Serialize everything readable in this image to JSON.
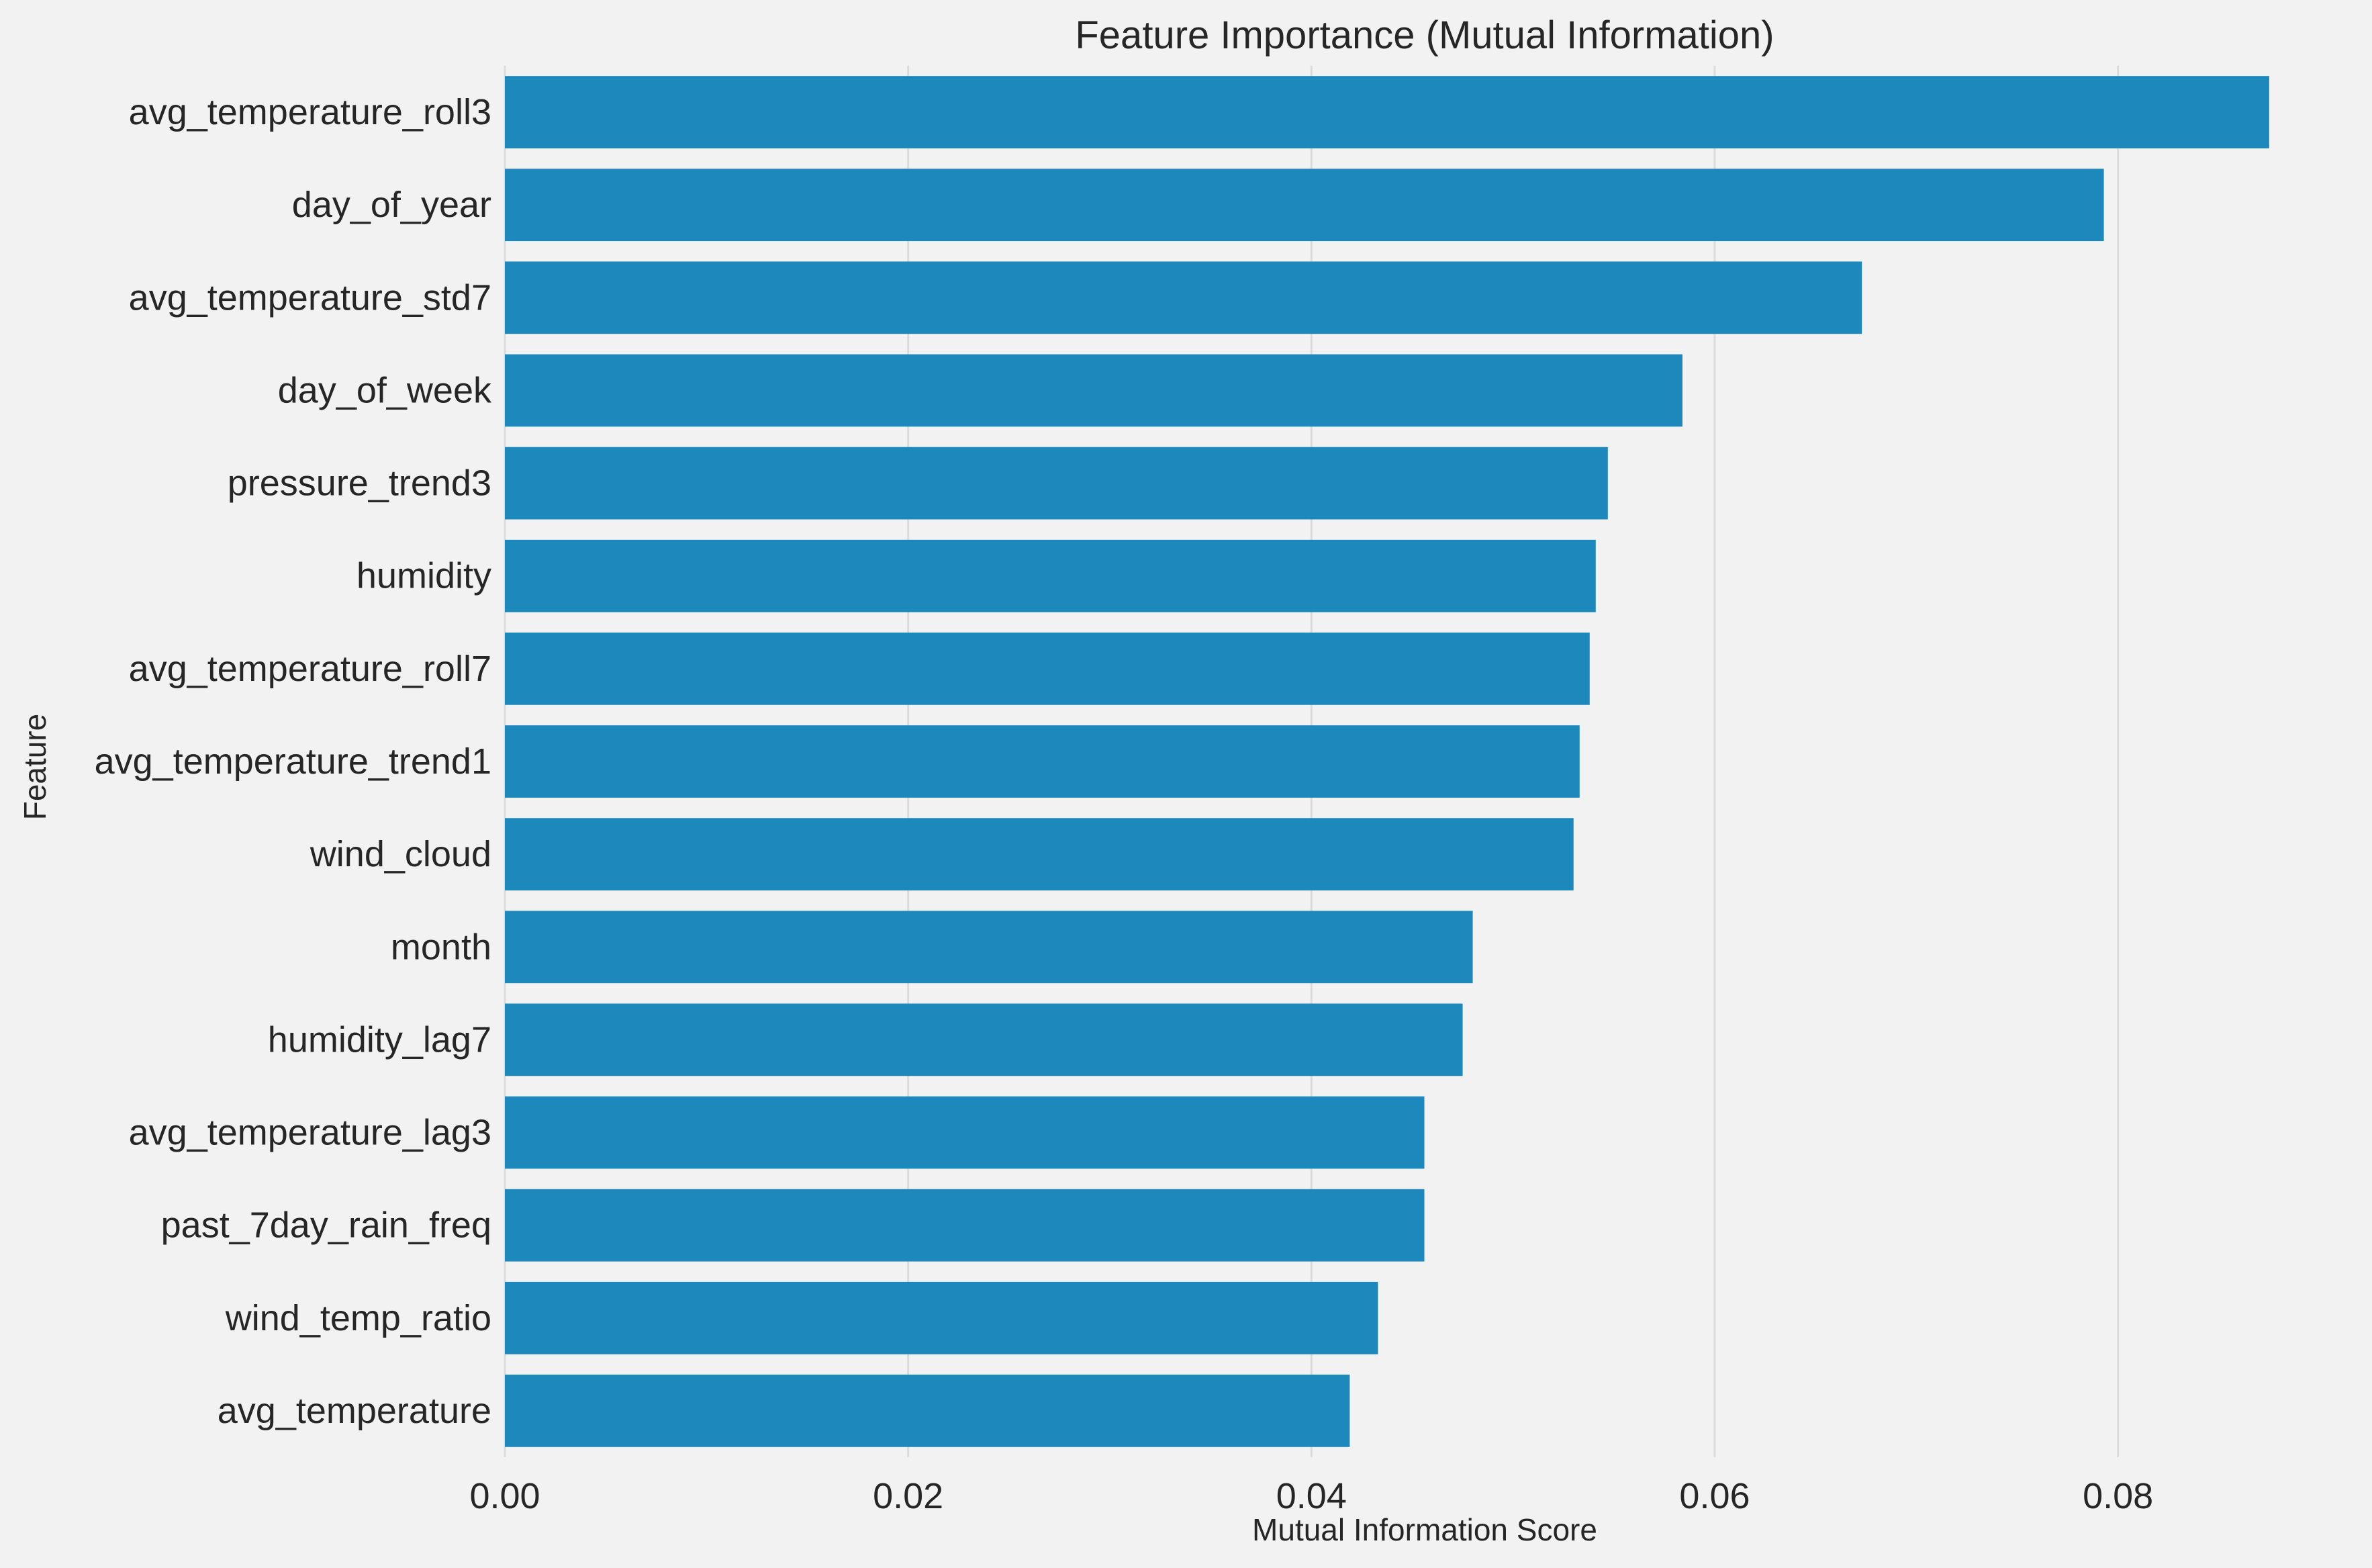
{
  "chart_data": {
    "type": "bar",
    "orientation": "horizontal",
    "title": "Feature Importance (Mutual Information)",
    "xlabel": "Mutual Information Score",
    "ylabel": "Feature",
    "xlim": [
      0,
      0.0912
    ],
    "xticks": [
      0.0,
      0.02,
      0.04,
      0.06,
      0.08
    ],
    "xtick_labels": [
      "0.00",
      "0.02",
      "0.04",
      "0.06",
      "0.08"
    ],
    "grid": true,
    "bar_color": "#1c88bb",
    "background_color": "#f2f2f2",
    "categories": [
      "avg_temperature_roll3",
      "day_of_year",
      "avg_temperature_std7",
      "day_of_week",
      "pressure_trend3",
      "humidity",
      "avg_temperature_roll7",
      "avg_temperature_trend1",
      "wind_cloud",
      "month",
      "humidity_lag7",
      "avg_temperature_lag3",
      "past_7day_rain_freq",
      "wind_temp_ratio",
      "avg_temperature"
    ],
    "values": [
      0.0875,
      0.0793,
      0.0673,
      0.0584,
      0.0547,
      0.0541,
      0.0538,
      0.0533,
      0.053,
      0.048,
      0.0475,
      0.0456,
      0.0456,
      0.0433,
      0.0419
    ]
  }
}
